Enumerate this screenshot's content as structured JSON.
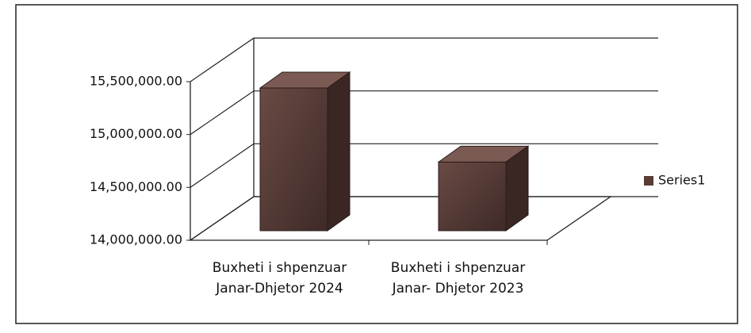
{
  "chart_data": {
    "type": "bar3d",
    "categories": [
      "Buxheti i shpenzuar\nJanar-Dhjetor 2024",
      "Buxheti i shpenzuar\nJanar- Dhjetor 2023"
    ],
    "series": [
      {
        "name": "Series1",
        "color": "#5b3b36",
        "values": [
          15350000,
          14650000
        ]
      }
    ],
    "ylim": [
      14000000,
      15500000
    ],
    "yticks": [
      {
        "value": 14000000,
        "label": "14,000,000.00"
      },
      {
        "value": 14500000,
        "label": "14,500,000.00"
      },
      {
        "value": 15000000,
        "label": "15,000,000.00"
      },
      {
        "value": 15500000,
        "label": "15,500,000.00"
      }
    ],
    "grid": true,
    "legend": "right"
  }
}
